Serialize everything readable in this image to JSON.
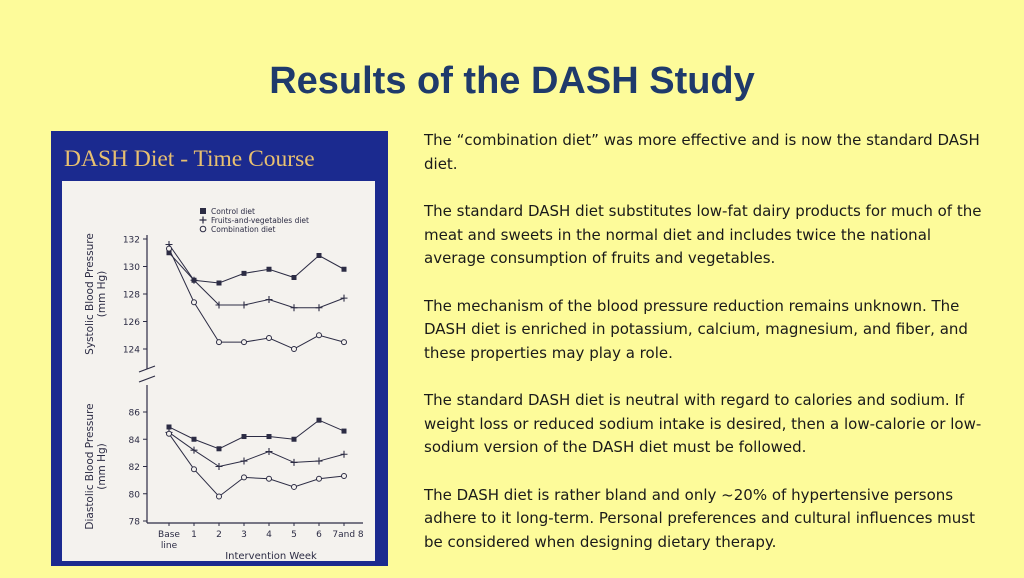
{
  "slide": {
    "title": "Results of the DASH Study"
  },
  "body": {
    "paragraphs": [
      "The “combination diet” was more effective and is now the standard DASH diet.",
      "The standard DASH diet substitutes low-fat dairy products for much of the meat and sweets in the normal diet and includes twice the national average consumption of fruits and vegetables.",
      "The mechanism of the blood pressure reduction remains unknown. The DASH diet is enriched in potassium, calcium, magnesium, and fiber, and these properties may play a role.",
      "The standard DASH diet is neutral with regard to calories and sodium. If weight loss or reduced sodium intake is desired, then a low-calorie or low-sodium version of the DASH diet must be followed.",
      "The DASH diet is rather bland and only ~20% of hypertensive persons adhere to it long-term.  Personal preferences and cultural influences must be considered when designing dietary therapy."
    ]
  },
  "colors": {
    "slide_background": "#fdfb9a",
    "title": "#1f3a6b",
    "figure_frame": "#1b2a8f",
    "figure_title": "#e8c070",
    "plot_background": "#f4f2ee"
  },
  "chart_data": {
    "type": "line",
    "title": "DASH Diet - Time Course",
    "xlabel": "Intervention Week",
    "x_categories": [
      "Base line",
      "1",
      "2",
      "3",
      "4",
      "5",
      "6",
      "7and 8"
    ],
    "legend": {
      "placement": "top",
      "entries": [
        {
          "label": "Control diet",
          "marker": "square"
        },
        {
          "label": "Fruits-and-vegetables diet",
          "marker": "plus"
        },
        {
          "label": "Combination diet",
          "marker": "circle"
        }
      ]
    },
    "panels": [
      {
        "name": "systolic",
        "ylabel": "Systolic Blood Pressure (mm Hg)",
        "yticks": [
          124,
          126,
          128,
          130,
          132
        ],
        "ylim": [
          123,
          132
        ],
        "series": [
          {
            "name": "Control diet",
            "marker": "square",
            "values": [
              131.0,
              129.0,
              128.8,
              129.5,
              129.8,
              129.2,
              130.8,
              129.8
            ]
          },
          {
            "name": "Fruits-and-vegetables diet",
            "marker": "plus",
            "values": [
              131.6,
              129.0,
              127.2,
              127.2,
              127.6,
              127.0,
              127.0,
              127.7
            ]
          },
          {
            "name": "Combination diet",
            "marker": "circle",
            "values": [
              131.3,
              127.4,
              124.5,
              124.5,
              124.8,
              124.0,
              125.0,
              124.5
            ]
          }
        ]
      },
      {
        "name": "diastolic",
        "ylabel": "Diastolic Blood Pressure (mm Hg)",
        "yticks": [
          78,
          80,
          82,
          84,
          86
        ],
        "ylim": [
          78,
          87
        ],
        "series": [
          {
            "name": "Control diet",
            "marker": "square",
            "values": [
              84.9,
              84.0,
              83.3,
              84.2,
              84.2,
              84.0,
              85.4,
              84.6
            ]
          },
          {
            "name": "Fruits-and-vegetables diet",
            "marker": "plus",
            "values": [
              84.5,
              83.2,
              82.0,
              82.4,
              83.1,
              82.3,
              82.4,
              82.9
            ]
          },
          {
            "name": "Combination diet",
            "marker": "circle",
            "values": [
              84.4,
              81.8,
              79.8,
              81.2,
              81.1,
              80.5,
              81.1,
              81.3
            ]
          }
        ]
      }
    ]
  }
}
